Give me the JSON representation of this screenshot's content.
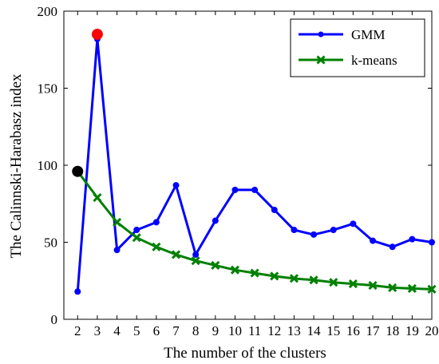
{
  "chart_data": {
    "type": "line",
    "xlabel": "The number of the clusters",
    "ylabel": "The Calinnski-Harabasz index",
    "xlim": [
      1.3,
      20
    ],
    "ylim": [
      0,
      200
    ],
    "x": [
      2,
      3,
      4,
      5,
      6,
      7,
      8,
      9,
      10,
      11,
      12,
      13,
      14,
      15,
      16,
      17,
      18,
      19,
      20
    ],
    "x_ticks": [
      2,
      3,
      4,
      5,
      6,
      7,
      8,
      9,
      10,
      11,
      12,
      13,
      14,
      15,
      16,
      17,
      18,
      19,
      20
    ],
    "y_ticks": [
      0,
      50,
      100,
      150,
      200
    ],
    "grid": false,
    "legend_position": "top-right",
    "series": [
      {
        "name": "GMM",
        "color": "#0000ff",
        "marker": "circle",
        "values": [
          18,
          182,
          45,
          58,
          63,
          87,
          42,
          64,
          84,
          84,
          71,
          58,
          55,
          58,
          62,
          51,
          47,
          52,
          50
        ]
      },
      {
        "name": "k-means",
        "color": "#008000",
        "marker": "x",
        "values": [
          96,
          79,
          63,
          53,
          47,
          42,
          38,
          35,
          32,
          30,
          28,
          26.5,
          25.5,
          24,
          23,
          22,
          20.5,
          20,
          19.5
        ]
      }
    ],
    "highlights": [
      {
        "x": 3,
        "y": 185,
        "color": "#ff0000"
      },
      {
        "x": 2,
        "y": 96,
        "color": "#000000"
      }
    ]
  }
}
